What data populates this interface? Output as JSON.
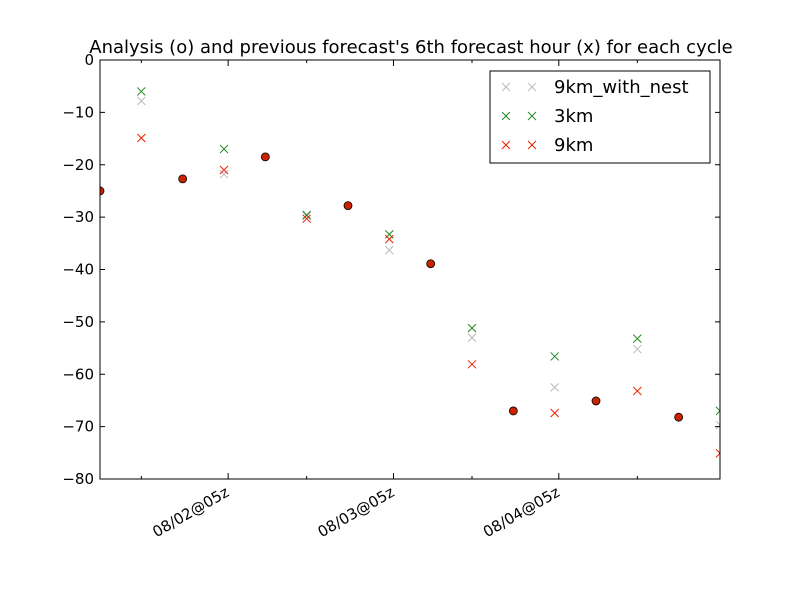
{
  "chart_data": {
    "type": "scatter",
    "title": "Analysis (o) and previous forecast's 6th forecast hour (x) for each cycle",
    "xlabel": "",
    "ylabel": "",
    "ylim": [
      -80,
      0
    ],
    "yticks": [
      0,
      -10,
      -20,
      -30,
      -40,
      -50,
      -60,
      -70,
      -80
    ],
    "xlim": [
      0,
      7.5
    ],
    "xticks": [
      {
        "x": 1.55,
        "label": "08/02@05z"
      },
      {
        "x": 3.55,
        "label": "08/03@05z"
      },
      {
        "x": 5.55,
        "label": "08/04@05z"
      }
    ],
    "x_minor_ticks": [
      0.5,
      2.5,
      4.5,
      6.5
    ],
    "grid": false,
    "legend_position": "upper-right",
    "analysis": {
      "marker": "o",
      "color": "#cc2200",
      "x": [
        0,
        1,
        2,
        3,
        4,
        5,
        6,
        7
      ],
      "y": [
        -25,
        -22.7,
        -18.5,
        -27.8,
        -38.9,
        -67.0,
        -65.1,
        -68.2
      ]
    },
    "series": [
      {
        "name": "9km_with_nest",
        "marker": "x",
        "color": "#bbbbbb",
        "x": [
          0.5,
          1.5,
          2.5,
          3.5,
          4.5,
          5.5,
          6.5,
          7.5
        ],
        "y": [
          -7.8,
          -21.8,
          -29.8,
          -36.3,
          -53.0,
          -62.5,
          -55.2,
          -69.7
        ]
      },
      {
        "name": "3km",
        "marker": "x",
        "color": "#228b22",
        "x": [
          0.5,
          1.5,
          2.5,
          3.5,
          4.5,
          5.5,
          6.5,
          7.5
        ],
        "y": [
          -6.0,
          -17.0,
          -29.6,
          -33.3,
          -51.2,
          -56.6,
          -53.2,
          -67.0
        ]
      },
      {
        "name": "9km",
        "marker": "x",
        "color": "#ee2200",
        "x": [
          0.5,
          1.5,
          2.5,
          3.5,
          4.5,
          5.5,
          6.5,
          7.5
        ],
        "y": [
          -14.9,
          -21.0,
          -30.3,
          -34.2,
          -58.1,
          -67.4,
          -63.2,
          -75.1
        ]
      }
    ]
  }
}
